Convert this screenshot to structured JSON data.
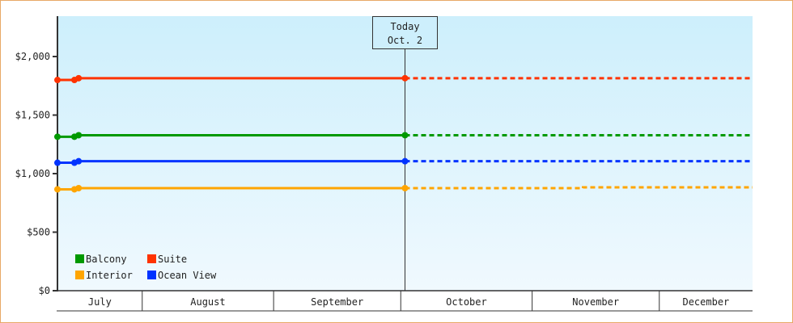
{
  "chart_data": {
    "type": "line",
    "ylim": [
      0,
      2345
    ],
    "xlim": [
      "2013-07-12",
      "2013-12-23"
    ],
    "y_ticks": [
      {
        "value": 0,
        "label": "$0"
      },
      {
        "value": 500,
        "label": "$500"
      },
      {
        "value": 1000,
        "label": "$1,000"
      },
      {
        "value": 1500,
        "label": "$1,500"
      },
      {
        "value": 2000,
        "label": "$2,000"
      }
    ],
    "months": [
      {
        "label": "July",
        "start": "2013-07-12",
        "end": "2013-08-01"
      },
      {
        "label": "August",
        "start": "2013-08-01",
        "end": "2013-09-01"
      },
      {
        "label": "September",
        "start": "2013-09-01",
        "end": "2013-10-01"
      },
      {
        "label": "October",
        "start": "2013-10-01",
        "end": "2013-11-01"
      },
      {
        "label": "November",
        "start": "2013-11-01",
        "end": "2013-12-01"
      },
      {
        "label": "December",
        "start": "2013-12-01",
        "end": "2013-12-23"
      }
    ],
    "today": {
      "label1": "Today",
      "label2": "Oct. 2",
      "date": "2013-10-02"
    },
    "legend_position": "bottom-left",
    "series": [
      {
        "name": "Suite",
        "color": "#ff3300",
        "points": [
          [
            "2013-07-12",
            1800
          ],
          [
            "2013-07-16",
            1800
          ],
          [
            "2013-07-17",
            1815
          ],
          [
            "2013-10-02",
            1815
          ]
        ],
        "forecast": [
          [
            "2013-10-02",
            1815
          ],
          [
            "2013-12-23",
            1815
          ]
        ]
      },
      {
        "name": "Balcony",
        "color": "#009900",
        "points": [
          [
            "2013-07-12",
            1315
          ],
          [
            "2013-07-16",
            1315
          ],
          [
            "2013-07-17",
            1328
          ],
          [
            "2013-10-02",
            1328
          ]
        ],
        "forecast": [
          [
            "2013-10-02",
            1328
          ],
          [
            "2013-12-23",
            1328
          ]
        ]
      },
      {
        "name": "Ocean View",
        "color": "#0033ff",
        "points": [
          [
            "2013-07-12",
            1093
          ],
          [
            "2013-07-16",
            1093
          ],
          [
            "2013-07-17",
            1106
          ],
          [
            "2013-10-02",
            1106
          ]
        ],
        "forecast": [
          [
            "2013-10-02",
            1106
          ],
          [
            "2013-12-23",
            1106
          ]
        ]
      },
      {
        "name": "Interior",
        "color": "#ffa500",
        "points": [
          [
            "2013-07-12",
            866
          ],
          [
            "2013-07-16",
            866
          ],
          [
            "2013-07-17",
            876
          ],
          [
            "2013-10-02",
            876
          ]
        ],
        "forecast": [
          [
            "2013-10-02",
            876
          ],
          [
            "2013-11-13",
            876
          ],
          [
            "2013-11-13",
            883
          ],
          [
            "2013-12-23",
            883
          ]
        ]
      }
    ],
    "legend_order": [
      "Balcony",
      "Suite",
      "Interior",
      "Ocean View"
    ]
  }
}
